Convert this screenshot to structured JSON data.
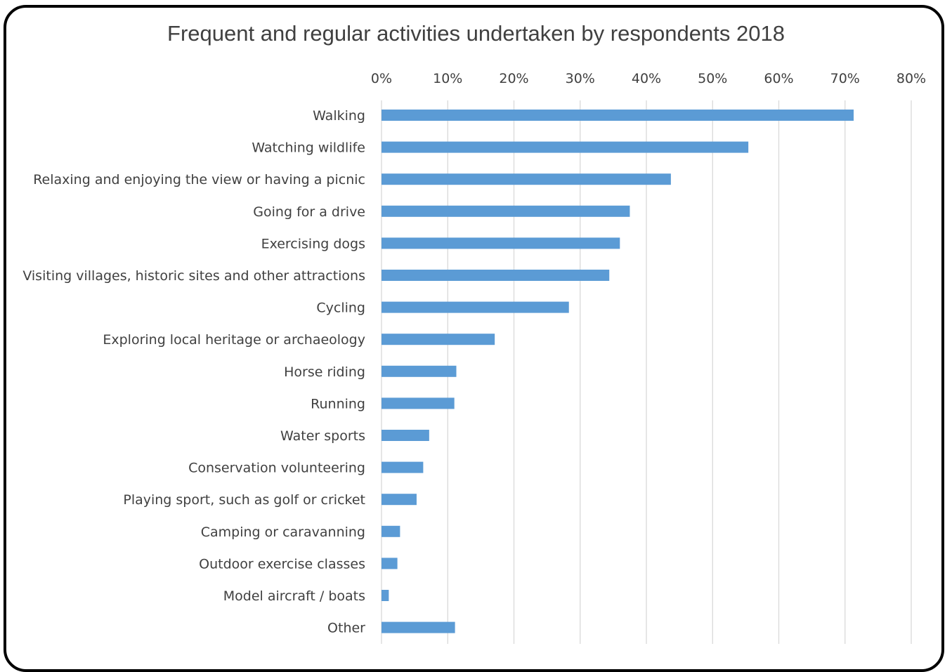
{
  "chart_data": {
    "type": "bar",
    "orientation": "horizontal",
    "title": "Frequent and regular activities undertaken by respondents 2018",
    "xlabel": "",
    "ylabel": "",
    "xlim": [
      0,
      80
    ],
    "ticks": [
      0,
      10,
      20,
      30,
      40,
      50,
      60,
      70,
      80
    ],
    "tick_labels": [
      "0%",
      "10%",
      "20%",
      "30%",
      "40%",
      "50%",
      "60%",
      "70%",
      "80%"
    ],
    "axis_position": "top",
    "grid": true,
    "legend": "none",
    "bar_color": "#5b9bd5",
    "grid_color": "#d9d9d9",
    "categories": [
      "Walking",
      "Watching wildlife",
      "Relaxing and enjoying the view or having a picnic",
      "Going for a drive",
      "Exercising dogs",
      "Visiting villages, historic sites and other attractions",
      "Cycling",
      "Exploring local heritage or archaeology",
      "Horse riding",
      "Running",
      "Water sports",
      "Conservation volunteering",
      "Playing sport, such as golf or cricket",
      "Camping or caravanning",
      "Outdoor exercise classes",
      "Model aircraft / boats",
      "Other"
    ],
    "values": [
      71.3,
      55.4,
      43.7,
      37.5,
      36,
      34.4,
      28.3,
      17.1,
      11.3,
      11,
      7.2,
      6.3,
      5.3,
      2.8,
      2.4,
      1.1,
      11.1
    ]
  }
}
